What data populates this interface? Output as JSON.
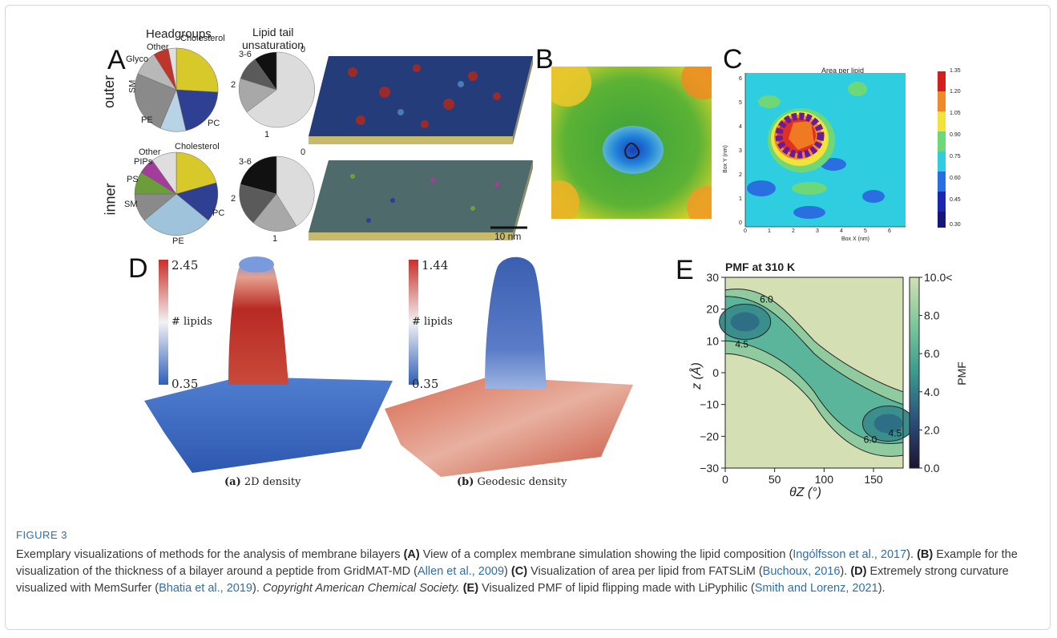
{
  "panelA": {
    "letter": "A",
    "headgroups_title": "Headgroups",
    "tail_title_1": "Lipid tail",
    "tail_title_2": "unsaturation",
    "row_outer": "outer",
    "row_inner": "inner",
    "outer_headgroup_labels": [
      "Other",
      "Cholesterol",
      "Glyco",
      "SM",
      "PE",
      "PC"
    ],
    "inner_headgroup_labels": [
      "Other",
      "Cholesterol",
      "PIPs",
      "PS",
      "SM",
      "PE",
      "PC"
    ],
    "outer_tail_labels": [
      "3-6",
      "0",
      "2",
      "1"
    ],
    "inner_tail_labels": [
      "3-6",
      "0",
      "2",
      "1"
    ],
    "scale_bar": "10 nm"
  },
  "panelB": {
    "letter": "B"
  },
  "panelC": {
    "letter": "C",
    "title": "Area per lipid",
    "xlabel": "Box X (nm)",
    "ylabel": "Box Y (nm)",
    "xticks": [
      "0",
      "1",
      "2",
      "3",
      "4",
      "5",
      "6"
    ],
    "yticks": [
      "0",
      "1",
      "2",
      "3",
      "4",
      "5",
      "6"
    ],
    "colorbar_ticks": [
      "1.35",
      "1.20",
      "1.05",
      "0.90",
      "0.75",
      "0.60",
      "0.45",
      "0.30"
    ]
  },
  "panelD": {
    "letter": "D",
    "a_max": "2.45",
    "a_min": "0.35",
    "a_label": "# lipids",
    "a_caption_tag": "(a)",
    "a_caption": "2D density",
    "b_max": "1.44",
    "b_min": "0.35",
    "b_label": "# lipids",
    "b_caption_tag": "(b)",
    "b_caption": "Geodesic density"
  },
  "chart_data": {
    "type": "heatmap",
    "title": "PMF at 310 K",
    "xlabel": "θZ (°)",
    "ylabel": "z (Å)",
    "xlim": [
      0,
      180
    ],
    "ylim": [
      -30,
      30
    ],
    "xticks": [
      "0",
      "50",
      "100",
      "150"
    ],
    "yticks": [
      "30",
      "20",
      "10",
      "0",
      "−10",
      "−20",
      "−30"
    ],
    "colorbar_label": "PMF",
    "colorbar_ticks": [
      "10.0<",
      "8.0",
      "6.0",
      "4.0",
      "2.0",
      "0.0"
    ],
    "contour_labels": [
      "6.0",
      "4.5",
      "6.0",
      "4.5"
    ],
    "minima": [
      {
        "theta": 20,
        "z": 16,
        "pmf": 4.5
      },
      {
        "theta": 165,
        "z": -16,
        "pmf": 4.5
      }
    ]
  },
  "panelE": {
    "letter": "E"
  },
  "caption": {
    "figure_label": "FIGURE 3",
    "intro": "Exemplary visualizations of methods for the analysis of membrane bilayers ",
    "a_tag": "(A)",
    "a_text": " View of a complex membrane simulation showing the lipid composition (",
    "a_cite": "Ingólfsson et al., 2017",
    "a_end": "). ",
    "b_tag": "(B)",
    "b_text": " Example for the visualization of the thickness of a bilayer around a peptide from GridMAT-MD (",
    "b_cite": "Allen et al., 2009",
    "b_end": ") ",
    "c_tag": "(C)",
    "c_text": " Visualization of area per lipid from FATSLiM (",
    "c_cite": "Buchoux, 2016",
    "c_end": "). ",
    "d_tag": "(D)",
    "d_text": " Extremely strong curvature visualized with MemSurfer (",
    "d_cite": "Bhatia et al., 2019",
    "d_end": "). ",
    "d_copyright": "Copyright American Chemical Society.",
    "e_tag": "(E)",
    "e_text": " Visualized PMF of lipid flipping made with LiPyphilic (",
    "e_cite": "Smith and Lorenz, 2021",
    "e_end": ")."
  }
}
